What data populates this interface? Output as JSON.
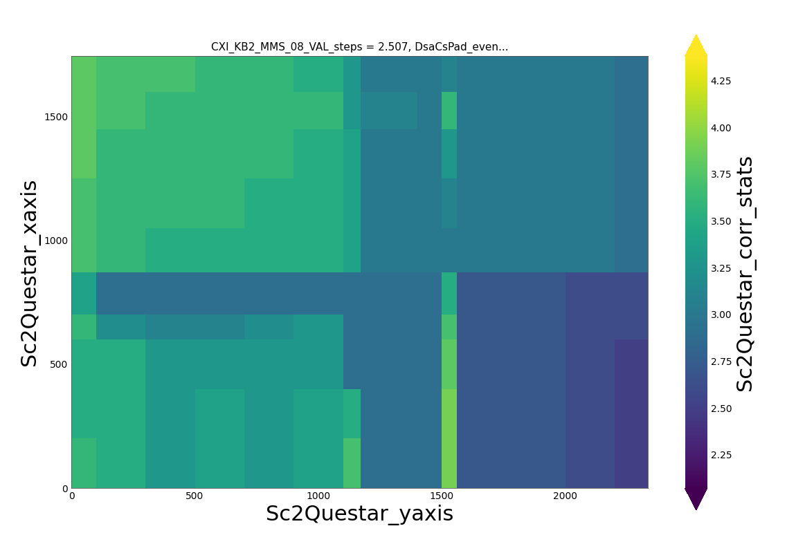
{
  "chart_data": {
    "type": "heatmap",
    "title": "CXI_KB2_MMS_08_VAL_steps = 2.507, DsaCsPad_even...",
    "x_label": "Sc2Questar_yaxis",
    "y_label": "Sc2Questar_xaxis",
    "xlim": [
      0,
      2333
    ],
    "xticks": [
      0,
      500,
      1000,
      1500,
      2000
    ],
    "ylim": [
      0,
      1746
    ],
    "yticks": [
      0,
      500,
      1000,
      1500
    ],
    "x_edges": [
      0,
      100,
      300,
      500,
      700,
      900,
      1100,
      1170,
      1400,
      1500,
      1560,
      1800,
      2000,
      2200,
      2333
    ],
    "y_edges": [
      0,
      200,
      400,
      600,
      700,
      870,
      1050,
      1250,
      1450,
      1600,
      1746
    ],
    "cells": [
      [
        3.6,
        3.5,
        3.3,
        3.4,
        3.3,
        3.4,
        3.7,
        2.9,
        2.9,
        3.9,
        2.7,
        2.7,
        2.6,
        2.5
      ],
      [
        3.5,
        3.5,
        3.3,
        3.4,
        3.3,
        3.4,
        3.5,
        2.9,
        2.9,
        3.9,
        2.7,
        2.7,
        2.6,
        2.5
      ],
      [
        3.5,
        3.5,
        3.3,
        3.3,
        3.3,
        3.3,
        2.9,
        2.9,
        2.9,
        3.8,
        2.7,
        2.7,
        2.6,
        2.5
      ],
      [
        3.6,
        3.2,
        3.1,
        3.1,
        3.2,
        3.3,
        2.9,
        2.9,
        2.9,
        3.7,
        2.7,
        2.7,
        2.6,
        2.6
      ],
      [
        3.4,
        2.9,
        2.9,
        2.9,
        2.9,
        2.9,
        2.9,
        2.9,
        2.9,
        3.5,
        2.7,
        2.7,
        2.6,
        2.6
      ],
      [
        3.7,
        3.6,
        3.5,
        3.5,
        3.5,
        3.5,
        3.4,
        3.0,
        3.0,
        3.0,
        3.0,
        3.0,
        3.0,
        2.9
      ],
      [
        3.7,
        3.6,
        3.6,
        3.6,
        3.5,
        3.5,
        3.4,
        3.0,
        3.0,
        3.1,
        3.0,
        3.0,
        3.0,
        2.9
      ],
      [
        3.8,
        3.6,
        3.6,
        3.6,
        3.6,
        3.5,
        3.4,
        3.0,
        3.0,
        3.3,
        3.0,
        3.0,
        3.0,
        2.9
      ],
      [
        3.8,
        3.7,
        3.6,
        3.6,
        3.6,
        3.6,
        3.3,
        3.1,
        3.0,
        3.6,
        3.0,
        3.0,
        3.0,
        2.9
      ],
      [
        3.8,
        3.7,
        3.7,
        3.6,
        3.6,
        3.5,
        3.3,
        3.0,
        3.0,
        3.1,
        3.0,
        3.0,
        3.0,
        2.9
      ]
    ],
    "colorbar": {
      "label": "Sc2Questar_corr_stats",
      "lim": [
        2.07,
        4.38
      ],
      "ticks": [
        2.25,
        {
          "value": 2.5,
          "label": "2.50"
        },
        2.75,
        {
          "value": 3.0,
          "label": "3.00"
        },
        3.25,
        {
          "value": 3.5,
          "label": "3.50"
        },
        3.75,
        {
          "value": 4.0,
          "label": "4.00"
        },
        4.25
      ]
    }
  }
}
